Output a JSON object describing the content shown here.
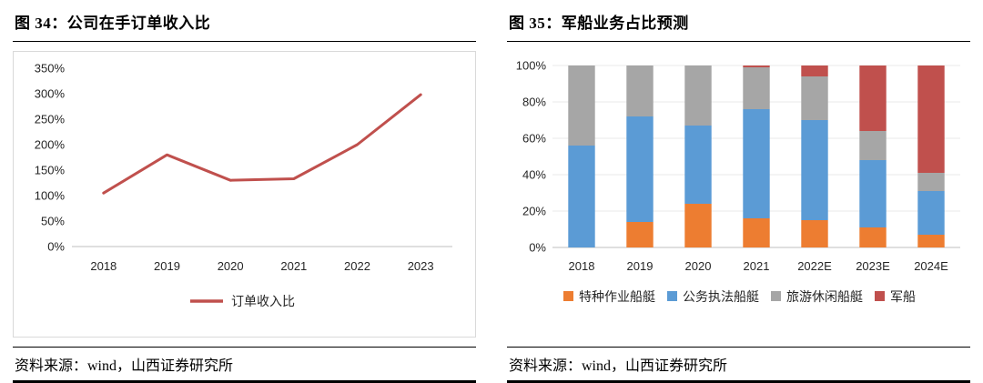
{
  "left_panel": {
    "title": "图 34：公司在手订单收入比",
    "source": "资料来源：wind，山西证券研究所"
  },
  "right_panel": {
    "title": "图 35：军船业务占比预测",
    "source": "资料来源：wind，山西证券研究所"
  },
  "chart_data": [
    {
      "type": "line",
      "title": "公司在手订单收入比",
      "x": [
        "2018",
        "2019",
        "2020",
        "2021",
        "2022",
        "2023"
      ],
      "series": [
        {
          "name": "订单收入比",
          "color": "#C0504D",
          "values": [
            105,
            180,
            130,
            133,
            200,
            298
          ]
        }
      ],
      "xlabel": "",
      "ylabel": "",
      "ylim": [
        0,
        350
      ],
      "ytick_step": 50,
      "ytick_format": "percent",
      "grid": false,
      "legend_position": "bottom"
    },
    {
      "type": "bar",
      "stacked": true,
      "title": "军船业务占比预测",
      "categories": [
        "2018",
        "2019",
        "2020",
        "2021",
        "2022E",
        "2023E",
        "2024E"
      ],
      "series": [
        {
          "name": "特种作业船艇",
          "color": "#ED7D31",
          "values": [
            0,
            14,
            24,
            16,
            15,
            11,
            7
          ]
        },
        {
          "name": "公务执法船艇",
          "color": "#5B9BD5",
          "values": [
            56,
            58,
            43,
            60,
            55,
            37,
            24
          ]
        },
        {
          "name": "旅游休闲船艇",
          "color": "#A6A6A6",
          "values": [
            44,
            28,
            33,
            23,
            24,
            16,
            10
          ]
        },
        {
          "name": "军船",
          "color": "#C0504D",
          "values": [
            0,
            0,
            0,
            1,
            6,
            36,
            59
          ]
        }
      ],
      "xlabel": "",
      "ylabel": "",
      "ylim": [
        0,
        100
      ],
      "ytick_step": 20,
      "ytick_format": "percent",
      "grid": true,
      "legend_position": "bottom"
    }
  ]
}
